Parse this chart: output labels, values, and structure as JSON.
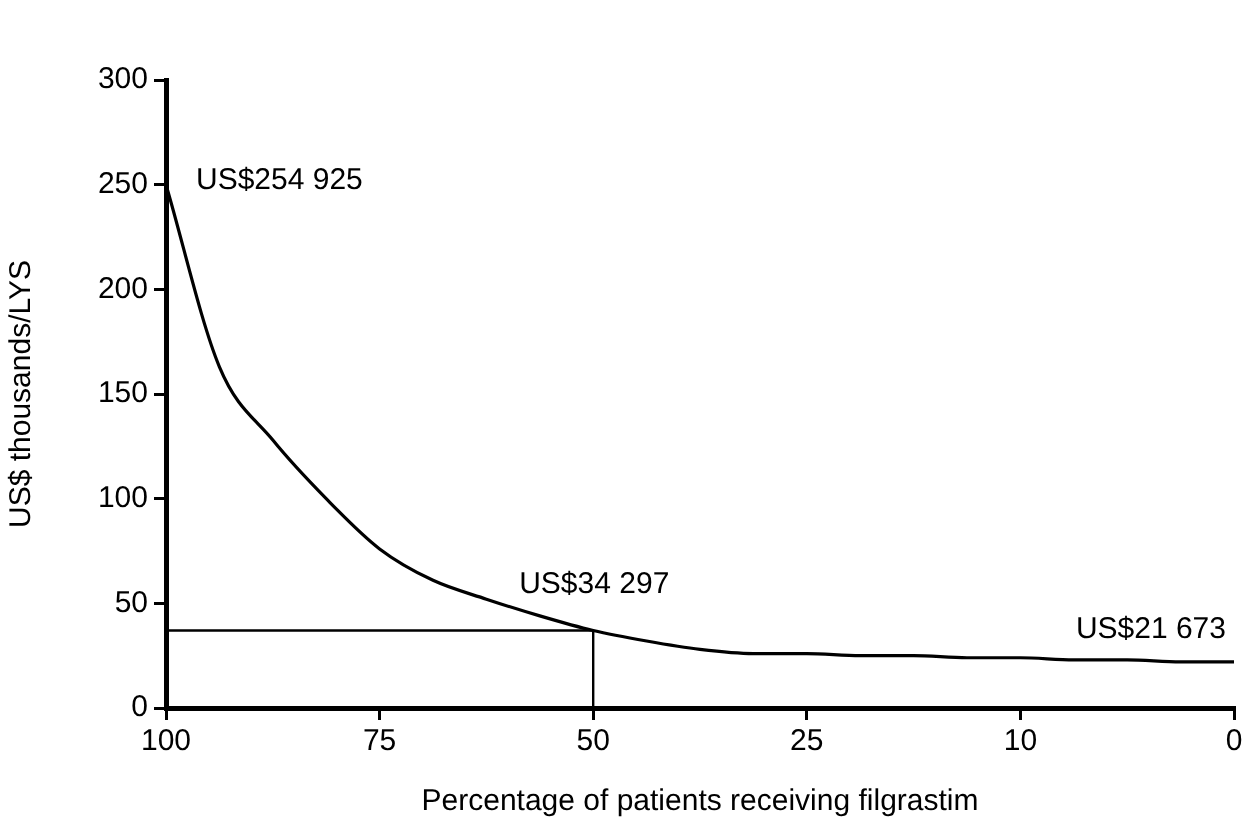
{
  "chart_data": {
    "type": "line",
    "xlabel": "Percentage of patients receiving filgrastim",
    "ylabel": "US$ thousands/LYS",
    "categories": [
      "100",
      null,
      null,
      null,
      "75",
      null,
      null,
      null,
      "50",
      null,
      null,
      null,
      "25",
      null,
      null,
      null,
      "10",
      null,
      null,
      null,
      "0"
    ],
    "series": [
      {
        "color": "#000000",
        "values": [
          250,
          163,
          128,
          100,
          76,
          61,
          52,
          44,
          37,
          32,
          28,
          26,
          26,
          25,
          25,
          24,
          24,
          23,
          23,
          22,
          22
        ]
      },
      {
        "type": "line",
        "color": "#000000",
        "x": [
          "100",
          "50",
          "50"
        ],
        "values": [
          37,
          37,
          0
        ]
      }
    ],
    "ylim": [
      0,
      300
    ],
    "yticks": [
      0,
      50,
      100,
      150,
      200,
      250,
      300
    ],
    "grid": false,
    "legend": false,
    "marker": "none",
    "line_style": "solid",
    "annotations": [
      {
        "text": "US$254 925",
        "x": "100",
        "y": 250
      },
      {
        "text": "US$34 297",
        "x": "50",
        "y": 37
      },
      {
        "text": "US$21 673",
        "x": "0",
        "y": 22
      }
    ]
  }
}
